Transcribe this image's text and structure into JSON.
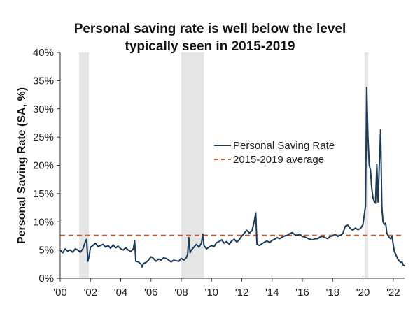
{
  "chart_data": {
    "type": "line",
    "title_lines": [
      "Personal saving rate is well below the level",
      "typically seen in 2015-2019"
    ],
    "xlabel": "",
    "ylabel": "Personal Saving Rate (SA, %)",
    "x_range": [
      2000,
      2022.75
    ],
    "ylim": [
      0,
      40
    ],
    "y_ticks": [
      0,
      5,
      10,
      15,
      20,
      25,
      30,
      35,
      40
    ],
    "y_tick_labels": [
      "0%",
      "5%",
      "10%",
      "15%",
      "20%",
      "25%",
      "30%",
      "35%",
      "40%"
    ],
    "x_ticks": [
      2000,
      2002,
      2004,
      2006,
      2008,
      2010,
      2012,
      2014,
      2016,
      2018,
      2020,
      2022
    ],
    "x_tick_labels": [
      "'00",
      "'02",
      "'04",
      "'06",
      "'08",
      "'10",
      "'12",
      "'14",
      "'16",
      "'18",
      "'20",
      "'22"
    ],
    "recessions": [
      {
        "start": 2001.25,
        "end": 2001.9
      },
      {
        "start": 2008.0,
        "end": 2009.5
      },
      {
        "start": 2020.1,
        "end": 2020.35
      }
    ],
    "grid": false,
    "legend_position": "center-right",
    "colors": {
      "saving_line": "#1d3a57",
      "average_line": "#c0622e",
      "recession_shade": "#e5e5e5",
      "axis": "#333333"
    },
    "series": [
      {
        "name": "Personal Saving Rate",
        "style": "solid",
        "points": [
          [
            2000.0,
            5.0
          ],
          [
            2000.17,
            4.5
          ],
          [
            2000.33,
            5.2
          ],
          [
            2000.5,
            4.8
          ],
          [
            2000.67,
            5.0
          ],
          [
            2000.83,
            4.6
          ],
          [
            2001.0,
            5.2
          ],
          [
            2001.17,
            5.0
          ],
          [
            2001.33,
            4.6
          ],
          [
            2001.5,
            5.2
          ],
          [
            2001.67,
            6.5
          ],
          [
            2001.75,
            6.9
          ],
          [
            2001.83,
            3.0
          ],
          [
            2001.92,
            4.0
          ],
          [
            2002.0,
            5.5
          ],
          [
            2002.17,
            5.8
          ],
          [
            2002.33,
            6.2
          ],
          [
            2002.5,
            5.6
          ],
          [
            2002.67,
            5.8
          ],
          [
            2002.83,
            6.0
          ],
          [
            2003.0,
            5.5
          ],
          [
            2003.17,
            5.8
          ],
          [
            2003.33,
            5.3
          ],
          [
            2003.5,
            5.9
          ],
          [
            2003.67,
            5.4
          ],
          [
            2003.83,
            5.7
          ],
          [
            2004.0,
            5.2
          ],
          [
            2004.17,
            5.0
          ],
          [
            2004.33,
            5.4
          ],
          [
            2004.5,
            5.0
          ],
          [
            2004.67,
            4.7
          ],
          [
            2004.83,
            5.2
          ],
          [
            2004.92,
            6.6
          ],
          [
            2005.0,
            3.0
          ],
          [
            2005.17,
            2.9
          ],
          [
            2005.33,
            2.5
          ],
          [
            2005.42,
            2.0
          ],
          [
            2005.5,
            2.6
          ],
          [
            2005.67,
            2.8
          ],
          [
            2005.83,
            3.2
          ],
          [
            2006.0,
            3.8
          ],
          [
            2006.17,
            3.5
          ],
          [
            2006.33,
            3.0
          ],
          [
            2006.5,
            3.4
          ],
          [
            2006.67,
            3.2
          ],
          [
            2006.83,
            3.6
          ],
          [
            2007.0,
            3.5
          ],
          [
            2007.17,
            3.2
          ],
          [
            2007.33,
            2.9
          ],
          [
            2007.5,
            3.2
          ],
          [
            2007.67,
            3.1
          ],
          [
            2007.83,
            3.0
          ],
          [
            2008.0,
            3.5
          ],
          [
            2008.17,
            3.2
          ],
          [
            2008.33,
            3.6
          ],
          [
            2008.42,
            4.2
          ],
          [
            2008.5,
            7.2
          ],
          [
            2008.58,
            4.5
          ],
          [
            2008.67,
            5.0
          ],
          [
            2008.83,
            5.5
          ],
          [
            2009.0,
            6.0
          ],
          [
            2009.17,
            5.5
          ],
          [
            2009.33,
            6.2
          ],
          [
            2009.42,
            7.8
          ],
          [
            2009.5,
            5.8
          ],
          [
            2009.67,
            5.2
          ],
          [
            2009.83,
            5.5
          ],
          [
            2010.0,
            5.8
          ],
          [
            2010.17,
            5.6
          ],
          [
            2010.33,
            6.3
          ],
          [
            2010.5,
            6.5
          ],
          [
            2010.67,
            6.8
          ],
          [
            2010.83,
            6.2
          ],
          [
            2011.0,
            6.5
          ],
          [
            2011.17,
            6.0
          ],
          [
            2011.33,
            6.6
          ],
          [
            2011.5,
            6.9
          ],
          [
            2011.67,
            6.4
          ],
          [
            2011.83,
            6.8
          ],
          [
            2012.0,
            7.5
          ],
          [
            2012.17,
            8.0
          ],
          [
            2012.33,
            8.5
          ],
          [
            2012.5,
            8.0
          ],
          [
            2012.67,
            8.4
          ],
          [
            2012.83,
            10.2
          ],
          [
            2012.92,
            11.6
          ],
          [
            2013.0,
            6.0
          ],
          [
            2013.17,
            5.8
          ],
          [
            2013.33,
            6.1
          ],
          [
            2013.5,
            6.4
          ],
          [
            2013.67,
            6.6
          ],
          [
            2013.83,
            6.3
          ],
          [
            2014.0,
            6.7
          ],
          [
            2014.17,
            6.9
          ],
          [
            2014.33,
            7.2
          ],
          [
            2014.5,
            7.0
          ],
          [
            2014.67,
            7.3
          ],
          [
            2014.83,
            7.5
          ],
          [
            2015.0,
            7.6
          ],
          [
            2015.17,
            7.9
          ],
          [
            2015.33,
            8.1
          ],
          [
            2015.5,
            7.7
          ],
          [
            2015.67,
            7.6
          ],
          [
            2015.83,
            7.8
          ],
          [
            2016.0,
            7.4
          ],
          [
            2016.17,
            7.3
          ],
          [
            2016.33,
            7.1
          ],
          [
            2016.5,
            6.9
          ],
          [
            2016.67,
            6.8
          ],
          [
            2016.83,
            7.0
          ],
          [
            2017.0,
            7.0
          ],
          [
            2017.17,
            7.3
          ],
          [
            2017.33,
            7.4
          ],
          [
            2017.5,
            7.2
          ],
          [
            2017.67,
            7.0
          ],
          [
            2017.83,
            7.4
          ],
          [
            2018.0,
            7.5
          ],
          [
            2018.17,
            7.8
          ],
          [
            2018.33,
            7.4
          ],
          [
            2018.5,
            7.6
          ],
          [
            2018.67,
            7.9
          ],
          [
            2018.83,
            9.2
          ],
          [
            2019.0,
            9.4
          ],
          [
            2019.17,
            8.8
          ],
          [
            2019.33,
            8.5
          ],
          [
            2019.5,
            8.9
          ],
          [
            2019.67,
            8.6
          ],
          [
            2019.83,
            8.8
          ],
          [
            2020.0,
            9.5
          ],
          [
            2020.17,
            12.8
          ],
          [
            2020.25,
            33.8
          ],
          [
            2020.33,
            25.0
          ],
          [
            2020.42,
            20.0
          ],
          [
            2020.5,
            19.2
          ],
          [
            2020.58,
            16.0
          ],
          [
            2020.67,
            14.2
          ],
          [
            2020.75,
            13.6
          ],
          [
            2020.83,
            13.3
          ],
          [
            2020.92,
            20.2
          ],
          [
            2021.0,
            13.5
          ],
          [
            2021.08,
            20.0
          ],
          [
            2021.17,
            26.3
          ],
          [
            2021.25,
            12.5
          ],
          [
            2021.33,
            10.0
          ],
          [
            2021.42,
            9.5
          ],
          [
            2021.5,
            9.8
          ],
          [
            2021.58,
            8.0
          ],
          [
            2021.67,
            7.5
          ],
          [
            2021.75,
            7.2
          ],
          [
            2021.83,
            7.0
          ],
          [
            2021.92,
            7.4
          ],
          [
            2022.0,
            6.0
          ],
          [
            2022.08,
            4.7
          ],
          [
            2022.17,
            4.2
          ],
          [
            2022.25,
            3.7
          ],
          [
            2022.33,
            3.3
          ],
          [
            2022.42,
            3.0
          ],
          [
            2022.5,
            2.8
          ],
          [
            2022.58,
            2.9
          ],
          [
            2022.67,
            2.3
          ],
          [
            2022.75,
            2.2
          ]
        ]
      },
      {
        "name": "2015-2019 average",
        "style": "dashed",
        "points": [
          [
            2000.0,
            7.6
          ],
          [
            2022.75,
            7.6
          ]
        ]
      }
    ]
  }
}
